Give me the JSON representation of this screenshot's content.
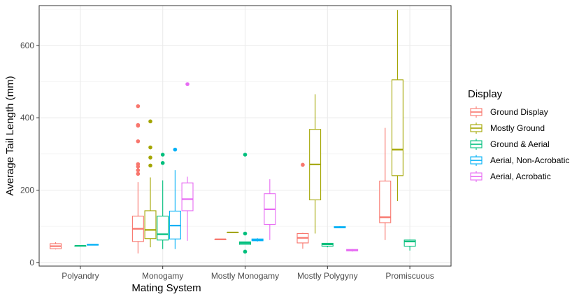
{
  "chart_data": {
    "type": "boxplot",
    "xlabel": "Mating System",
    "ylabel": "Average Tail Length (mm)",
    "categories": [
      "Polyandry",
      "Monogamy",
      "Mostly Monogamy",
      "Mostly Polygyny",
      "Promiscuous"
    ],
    "ylim": [
      -10,
      710
    ],
    "yticks": [
      0,
      200,
      400,
      600
    ],
    "grid": true,
    "legend": {
      "title": "Display",
      "position": "right"
    },
    "series": [
      {
        "name": "Ground Display",
        "color": "#F8766D",
        "boxes": [
          {
            "category": "Polyandry",
            "min": 36,
            "q1": 38,
            "median": 45,
            "q3": 52,
            "max": 56,
            "outliers": []
          },
          {
            "category": "Monogamy",
            "min": 25,
            "q1": 58,
            "median": 93,
            "q3": 128,
            "max": 222,
            "outliers": [
              245,
              255,
              265,
              272,
              335,
              378,
              380,
              432
            ]
          },
          {
            "category": "Mostly Monogamy",
            "min": 64,
            "q1": 64,
            "median": 64,
            "q3": 64,
            "max": 64,
            "outliers": []
          },
          {
            "category": "Mostly Polygyny",
            "min": 38,
            "q1": 54,
            "median": 68,
            "q3": 80,
            "max": 82,
            "outliers": [
              270
            ]
          },
          {
            "category": "Promiscuous",
            "min": 62,
            "q1": 110,
            "median": 125,
            "q3": 225,
            "max": 372,
            "outliers": []
          }
        ]
      },
      {
        "name": "Mostly Ground",
        "color": "#A3A500",
        "boxes": [
          {
            "category": "Monogamy",
            "min": 42,
            "q1": 66,
            "median": 90,
            "q3": 143,
            "max": 235,
            "outliers": [
              268,
              290,
              318,
              390
            ]
          },
          {
            "category": "Mostly Monogamy",
            "min": 83,
            "q1": 83,
            "median": 83,
            "q3": 83,
            "max": 83,
            "outliers": []
          },
          {
            "category": "Mostly Polygyny",
            "min": 80,
            "q1": 173,
            "median": 271,
            "q3": 368,
            "max": 465,
            "outliers": []
          },
          {
            "category": "Promiscuous",
            "min": 170,
            "q1": 240,
            "median": 312,
            "q3": 505,
            "max": 698,
            "outliers": []
          }
        ]
      },
      {
        "name": "Ground & Aerial",
        "color": "#00BF7D",
        "boxes": [
          {
            "category": "Polyandry",
            "min": 46,
            "q1": 46,
            "median": 46,
            "q3": 46,
            "max": 46,
            "outliers": []
          },
          {
            "category": "Monogamy",
            "min": 37,
            "q1": 62,
            "median": 78,
            "q3": 128,
            "max": 227,
            "outliers": [
              275,
              298
            ]
          },
          {
            "category": "Mostly Monogamy",
            "min": 50,
            "q1": 50,
            "median": 54,
            "q3": 57,
            "max": 57,
            "outliers": [
              30,
              80,
              298
            ]
          },
          {
            "category": "Mostly Polygyny",
            "min": 42,
            "q1": 45,
            "median": 50,
            "q3": 53,
            "max": 53,
            "outliers": []
          },
          {
            "category": "Promiscuous",
            "min": 33,
            "q1": 45,
            "median": 58,
            "q3": 62,
            "max": 63,
            "outliers": []
          }
        ]
      },
      {
        "name": "Aerial, Non-Acrobatic",
        "color": "#00B0F6",
        "boxes": [
          {
            "category": "Polyandry",
            "min": 48,
            "q1": 48,
            "median": 49,
            "q3": 50,
            "max": 50,
            "outliers": []
          },
          {
            "category": "Monogamy",
            "min": 37,
            "q1": 65,
            "median": 102,
            "q3": 142,
            "max": 255,
            "outliers": [
              312
            ]
          },
          {
            "category": "Mostly Monogamy",
            "min": 58,
            "q1": 60,
            "median": 62,
            "q3": 65,
            "max": 67,
            "outliers": []
          },
          {
            "category": "Mostly Polygyny",
            "min": 95,
            "q1": 96,
            "median": 97,
            "q3": 99,
            "max": 100,
            "outliers": []
          }
        ]
      },
      {
        "name": "Aerial, Acrobatic",
        "color": "#E76BF3",
        "boxes": [
          {
            "category": "Monogamy",
            "min": 60,
            "q1": 143,
            "median": 175,
            "q3": 220,
            "max": 237,
            "outliers": [
              493
            ]
          },
          {
            "category": "Mostly Monogamy",
            "min": 62,
            "q1": 105,
            "median": 147,
            "q3": 190,
            "max": 230,
            "outliers": []
          },
          {
            "category": "Mostly Polygyny",
            "min": 30,
            "q1": 32,
            "median": 34,
            "q3": 36,
            "max": 37,
            "outliers": []
          }
        ]
      }
    ]
  }
}
